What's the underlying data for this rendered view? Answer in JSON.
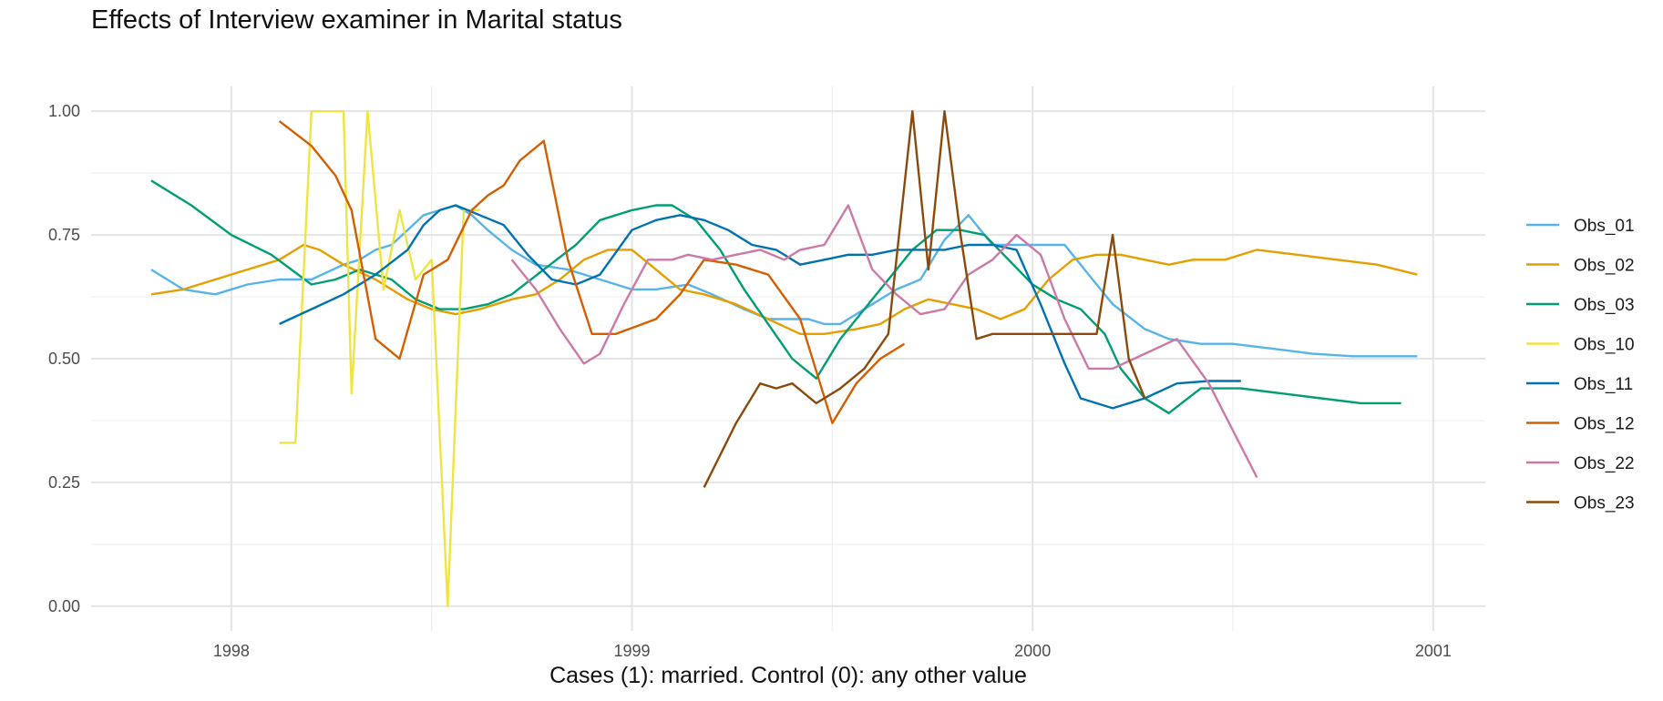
{
  "chart_data": {
    "type": "line",
    "title": "Effects of Interview examiner in Marital status",
    "xlabel": "Cases (1): married. Control (0): any other value",
    "ylabel": "",
    "xlim": [
      1997.65,
      2001.13
    ],
    "ylim": [
      -0.05,
      1.05
    ],
    "x_ticks": [
      1998,
      1999,
      2000,
      2001
    ],
    "x_tick_labels": [
      "1998",
      "1999",
      "2000",
      "2001"
    ],
    "y_ticks": [
      0.0,
      0.25,
      0.5,
      0.75,
      1.0
    ],
    "y_tick_labels": [
      "0.00",
      "0.25",
      "0.50",
      "0.75",
      "1.00"
    ],
    "grid": true,
    "legend_position": "right",
    "series": [
      {
        "name": "Obs_01",
        "color": "#56B4E9",
        "x": [
          1997.8,
          1997.88,
          1997.96,
          1998.04,
          1998.12,
          1998.2,
          1998.28,
          1998.32,
          1998.36,
          1998.4,
          1998.44,
          1998.48,
          1998.52,
          1998.56,
          1998.6,
          1998.64,
          1998.7,
          1998.76,
          1998.84,
          1998.92,
          1999.0,
          1999.06,
          1999.14,
          1999.2,
          1999.28,
          1999.34,
          1999.4,
          1999.44,
          1999.48,
          1999.52,
          1999.6,
          1999.66,
          1999.72,
          1999.78,
          1999.84,
          1999.9,
          1999.96,
          2000.02,
          2000.08,
          2000.14,
          2000.2,
          2000.28,
          2000.34,
          2000.42,
          2000.5,
          2000.6,
          2000.7,
          2000.8,
          2000.9,
          2000.96
        ],
        "y": [
          0.68,
          0.64,
          0.63,
          0.65,
          0.66,
          0.66,
          0.69,
          0.7,
          0.72,
          0.73,
          0.76,
          0.79,
          0.8,
          0.81,
          0.79,
          0.76,
          0.72,
          0.69,
          0.68,
          0.66,
          0.64,
          0.64,
          0.65,
          0.63,
          0.6,
          0.58,
          0.58,
          0.58,
          0.57,
          0.57,
          0.61,
          0.64,
          0.66,
          0.74,
          0.79,
          0.73,
          0.73,
          0.73,
          0.73,
          0.67,
          0.61,
          0.56,
          0.54,
          0.53,
          0.53,
          0.52,
          0.51,
          0.505,
          0.505,
          0.505
        ]
      },
      {
        "name": "Obs_02",
        "color": "#E69F00",
        "x": [
          1997.8,
          1997.88,
          1997.96,
          1998.04,
          1998.12,
          1998.18,
          1998.22,
          1998.28,
          1998.36,
          1998.44,
          1998.5,
          1998.56,
          1998.62,
          1998.66,
          1998.7,
          1998.76,
          1998.82,
          1998.88,
          1998.94,
          1999.0,
          1999.06,
          1999.12,
          1999.18,
          1999.26,
          1999.34,
          1999.42,
          1999.48,
          1999.56,
          1999.62,
          1999.68,
          1999.74,
          1999.8,
          1999.86,
          1999.92,
          1999.98,
          2000.04,
          2000.1,
          2000.16,
          2000.22,
          2000.28,
          2000.34,
          2000.4,
          2000.48,
          2000.56,
          2000.66,
          2000.76,
          2000.86,
          2000.96
        ],
        "y": [
          0.63,
          0.64,
          0.66,
          0.68,
          0.7,
          0.73,
          0.72,
          0.69,
          0.66,
          0.62,
          0.6,
          0.59,
          0.6,
          0.61,
          0.62,
          0.63,
          0.66,
          0.7,
          0.72,
          0.72,
          0.68,
          0.64,
          0.63,
          0.61,
          0.58,
          0.55,
          0.55,
          0.56,
          0.57,
          0.6,
          0.62,
          0.61,
          0.6,
          0.58,
          0.6,
          0.66,
          0.7,
          0.71,
          0.71,
          0.7,
          0.69,
          0.7,
          0.7,
          0.72,
          0.71,
          0.7,
          0.69,
          0.67
        ]
      },
      {
        "name": "Obs_03",
        "color": "#009E73",
        "x": [
          1997.8,
          1997.9,
          1998.0,
          1998.1,
          1998.2,
          1998.26,
          1998.32,
          1998.4,
          1998.46,
          1998.52,
          1998.58,
          1998.64,
          1998.7,
          1998.78,
          1998.86,
          1998.92,
          1999.0,
          1999.06,
          1999.1,
          1999.16,
          1999.22,
          1999.28,
          1999.34,
          1999.4,
          1999.46,
          1999.52,
          1999.58,
          1999.64,
          1999.7,
          1999.76,
          1999.82,
          1999.88,
          1999.94,
          2000.0,
          2000.06,
          2000.12,
          2000.18,
          2000.22,
          2000.28,
          2000.34,
          2000.42,
          2000.52,
          2000.62,
          2000.72,
          2000.82,
          2000.92
        ],
        "y": [
          0.86,
          0.81,
          0.75,
          0.71,
          0.65,
          0.66,
          0.68,
          0.66,
          0.62,
          0.6,
          0.6,
          0.61,
          0.63,
          0.68,
          0.73,
          0.78,
          0.8,
          0.81,
          0.81,
          0.78,
          0.72,
          0.64,
          0.57,
          0.5,
          0.46,
          0.54,
          0.6,
          0.66,
          0.72,
          0.76,
          0.76,
          0.75,
          0.7,
          0.65,
          0.62,
          0.6,
          0.55,
          0.48,
          0.42,
          0.39,
          0.44,
          0.44,
          0.43,
          0.42,
          0.41,
          0.41
        ]
      },
      {
        "name": "Obs_10",
        "color": "#F0E442",
        "x": [
          1998.12,
          1998.16,
          1998.2,
          1998.22,
          1998.24,
          1998.28,
          1998.3,
          1998.34,
          1998.38,
          1998.42,
          1998.46,
          1998.5,
          1998.54,
          1998.58,
          1998.62
        ],
        "y": [
          0.33,
          0.33,
          1.0,
          1.0,
          1.0,
          1.0,
          0.43,
          1.0,
          0.64,
          0.8,
          0.66,
          0.7,
          0.0,
          0.8,
          0.8
        ]
      },
      {
        "name": "Obs_11",
        "color": "#0072B2",
        "x": [
          1998.12,
          1998.2,
          1998.28,
          1998.36,
          1998.44,
          1998.48,
          1998.52,
          1998.56,
          1998.62,
          1998.68,
          1998.74,
          1998.8,
          1998.86,
          1998.92,
          1999.0,
          1999.06,
          1999.12,
          1999.18,
          1999.24,
          1999.3,
          1999.36,
          1999.42,
          1999.48,
          1999.54,
          1999.6,
          1999.66,
          1999.72,
          1999.78,
          1999.84,
          1999.9,
          1999.96,
          2000.02,
          2000.08,
          2000.12,
          2000.2,
          2000.28,
          2000.36,
          2000.44,
          2000.52
        ],
        "y": [
          0.57,
          0.6,
          0.63,
          0.67,
          0.72,
          0.77,
          0.8,
          0.81,
          0.79,
          0.77,
          0.71,
          0.66,
          0.65,
          0.67,
          0.76,
          0.78,
          0.79,
          0.78,
          0.76,
          0.73,
          0.72,
          0.69,
          0.7,
          0.71,
          0.71,
          0.72,
          0.72,
          0.72,
          0.73,
          0.73,
          0.72,
          0.61,
          0.49,
          0.42,
          0.4,
          0.42,
          0.45,
          0.455,
          0.455
        ]
      },
      {
        "name": "Obs_12",
        "color": "#D55E00",
        "x": [
          1998.12,
          1998.2,
          1998.26,
          1998.3,
          1998.36,
          1998.42,
          1998.48,
          1998.54,
          1998.6,
          1998.64,
          1998.68,
          1998.72,
          1998.78,
          1998.84,
          1998.9,
          1998.96,
          1999.06,
          1999.12,
          1999.18,
          1999.26,
          1999.34,
          1999.42,
          1999.5,
          1999.56,
          1999.62,
          1999.68
        ],
        "y": [
          0.98,
          0.93,
          0.87,
          0.8,
          0.54,
          0.5,
          0.67,
          0.7,
          0.8,
          0.83,
          0.85,
          0.9,
          0.94,
          0.7,
          0.55,
          0.55,
          0.58,
          0.63,
          0.7,
          0.69,
          0.67,
          0.58,
          0.37,
          0.45,
          0.5,
          0.53
        ]
      },
      {
        "name": "Obs_22",
        "color": "#CC79A7",
        "x": [
          1998.7,
          1998.76,
          1998.82,
          1998.88,
          1998.92,
          1998.98,
          1999.04,
          1999.1,
          1999.14,
          1999.2,
          1999.26,
          1999.32,
          1999.38,
          1999.42,
          1999.48,
          1999.54,
          1999.6,
          1999.66,
          1999.72,
          1999.78,
          1999.84,
          1999.9,
          1999.96,
          2000.02,
          2000.08,
          2000.14,
          2000.2,
          2000.28,
          2000.36,
          2000.44,
          2000.56
        ],
        "y": [
          0.7,
          0.64,
          0.56,
          0.49,
          0.51,
          0.61,
          0.7,
          0.7,
          0.71,
          0.7,
          0.71,
          0.72,
          0.7,
          0.72,
          0.73,
          0.81,
          0.68,
          0.63,
          0.59,
          0.6,
          0.67,
          0.7,
          0.75,
          0.71,
          0.58,
          0.48,
          0.48,
          0.51,
          0.54,
          0.45,
          0.26
        ]
      },
      {
        "name": "Obs_23",
        "color": "#8B4A0C",
        "x": [
          1999.18,
          1999.26,
          1999.32,
          1999.36,
          1999.4,
          1999.46,
          1999.52,
          1999.58,
          1999.64,
          1999.7,
          1999.74,
          1999.78,
          1999.82,
          1999.86,
          1999.9,
          1999.96,
          2000.04,
          2000.1,
          2000.16,
          2000.2,
          2000.24,
          2000.28
        ],
        "y": [
          0.24,
          0.37,
          0.45,
          0.44,
          0.45,
          0.41,
          0.44,
          0.48,
          0.55,
          1.0,
          0.68,
          1.0,
          0.75,
          0.54,
          0.55,
          0.55,
          0.55,
          0.55,
          0.55,
          0.75,
          0.5,
          0.42
        ]
      }
    ]
  }
}
